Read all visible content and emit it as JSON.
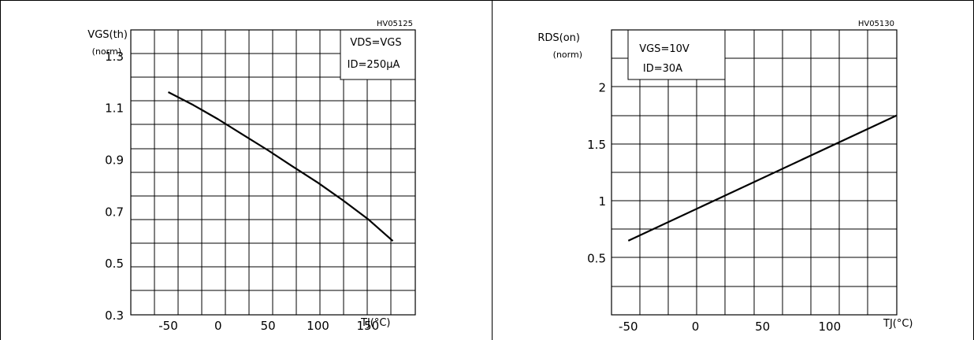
{
  "chart_data": [
    {
      "type": "line",
      "code": "HV05125",
      "ylabel_line1": "VGS(th)",
      "ylabel_line2": "(norm)",
      "xlabel": "TJ(°C)",
      "annotation_line1": "VDS=VGS",
      "annotation_line2": "ID=250μA",
      "xlim": [
        -87.5,
        197.5
      ],
      "ylim": [
        0.3,
        1.4
      ],
      "x_ticks": [
        -50,
        0,
        50,
        100,
        150
      ],
      "y_ticks": [
        0.3,
        0.5,
        0.7,
        0.9,
        1.1,
        1.3
      ],
      "x_tick_labels": [
        "-50",
        "0",
        "50",
        "100",
        "150"
      ],
      "y_tick_labels": [
        "0.3",
        "0.5",
        "0.7",
        "0.9",
        "1.1",
        "1.3"
      ],
      "grid": true,
      "series": [
        {
          "x": [
            -50,
            -25,
            0,
            25,
            50,
            75,
            100,
            125,
            150,
            175
          ],
          "y": [
            1.16,
            1.11,
            1.055,
            0.995,
            0.935,
            0.872,
            0.81,
            0.742,
            0.67,
            0.585
          ]
        }
      ]
    },
    {
      "type": "line",
      "code": "HV05130",
      "ylabel_line1": "RDS(on)",
      "ylabel_line2": "(norm)",
      "xlabel": "TJ(°C)",
      "annotation_line1": "VGS=10V",
      "annotation_line2": "ID=30A",
      "xlim": [
        -62.5,
        150
      ],
      "ylim": [
        0,
        2.5
      ],
      "x_ticks": [
        -50,
        0,
        50,
        100
      ],
      "y_ticks": [
        0.5,
        1,
        1.5,
        2
      ],
      "x_tick_labels": [
        "-50",
        "0",
        "50",
        "100"
      ],
      "y_tick_labels": [
        "0.5",
        "1",
        "1.5",
        "2"
      ],
      "grid": true,
      "series": [
        {
          "x": [
            -50,
            150
          ],
          "y": [
            0.65,
            1.75
          ]
        }
      ]
    }
  ]
}
